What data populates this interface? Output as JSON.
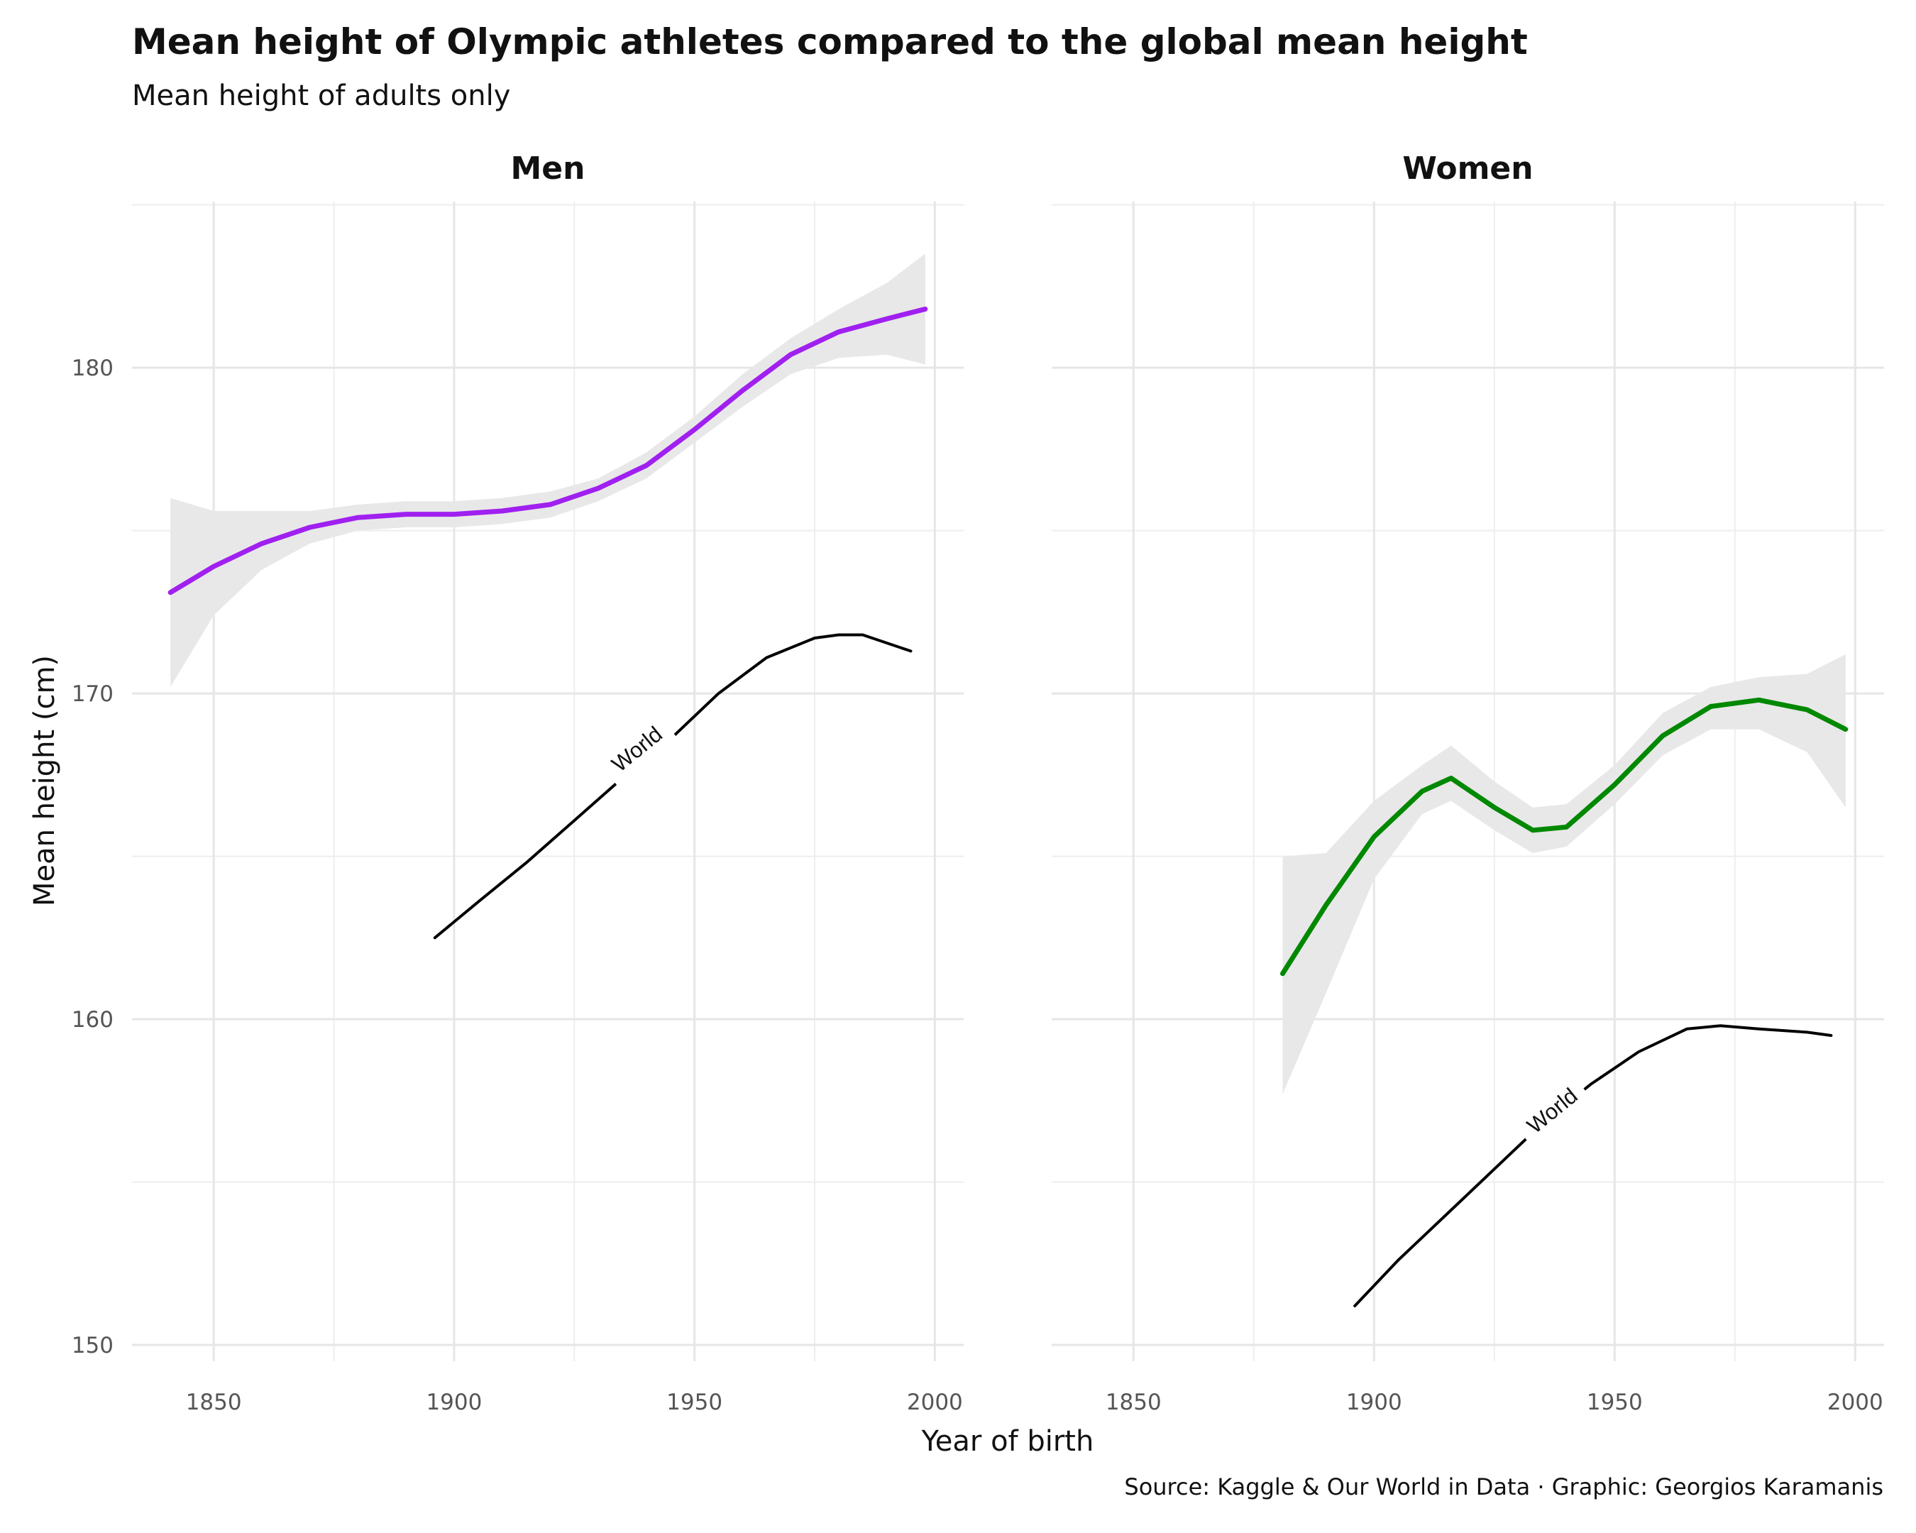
{
  "title": "Mean height of Olympic athletes compared to the global mean height",
  "subtitle": "Mean height of adults only",
  "caption": "Source: Kaggle & Our World in Data · Graphic: Georgios Karamanis",
  "chart_data": {
    "type": "line",
    "xlabel": "Year of birth",
    "ylabel": "Mean height (cm)",
    "xlim": [
      1833,
      2006
    ],
    "ylim": [
      149.5,
      185.1
    ],
    "xticks": [
      1850,
      1900,
      1950,
      2000
    ],
    "yticks": [
      150,
      160,
      170,
      180
    ],
    "grid": true,
    "colors": {
      "men": "#a020f0",
      "women": "#008800",
      "world": "#000000",
      "band": "#e8e8e8"
    },
    "facets": [
      {
        "name": "Men",
        "athletes": {
          "x": [
            1841,
            1850,
            1860,
            1870,
            1880,
            1890,
            1900,
            1910,
            1920,
            1930,
            1940,
            1950,
            1960,
            1970,
            1980,
            1990,
            1998
          ],
          "y": [
            173.1,
            173.9,
            174.6,
            175.1,
            175.4,
            175.5,
            175.5,
            175.6,
            175.8,
            176.3,
            177.0,
            178.1,
            179.3,
            180.4,
            181.1,
            181.5,
            181.8
          ],
          "lower": [
            170.2,
            172.4,
            173.8,
            174.6,
            175.0,
            175.1,
            175.1,
            175.2,
            175.4,
            175.9,
            176.6,
            177.7,
            178.8,
            179.8,
            180.3,
            180.4,
            180.1
          ],
          "upper": [
            176.0,
            175.6,
            175.6,
            175.6,
            175.8,
            175.9,
            175.9,
            176.0,
            176.2,
            176.6,
            177.4,
            178.5,
            179.8,
            180.9,
            181.8,
            182.6,
            183.5
          ]
        },
        "world": {
          "x": [
            1896,
            1905,
            1915,
            1925,
            1935,
            1945,
            1955,
            1965,
            1975,
            1980,
            1985,
            1995
          ],
          "y": [
            162.5,
            163.6,
            164.8,
            166.1,
            167.4,
            168.6,
            170.0,
            171.1,
            171.7,
            171.8,
            171.8,
            171.3
          ],
          "label": "World",
          "label_x": 1938,
          "label_y": 168.3
        }
      },
      {
        "name": "Women",
        "athletes": {
          "x": [
            1881,
            1890,
            1900,
            1910,
            1916,
            1925,
            1933,
            1940,
            1950,
            1960,
            1970,
            1980,
            1990,
            1998
          ],
          "y": [
            161.4,
            163.5,
            165.6,
            167.0,
            167.4,
            166.5,
            165.8,
            165.9,
            167.2,
            168.7,
            169.6,
            169.8,
            169.5,
            168.9
          ],
          "lower": [
            157.7,
            160.8,
            164.3,
            166.3,
            166.7,
            165.8,
            165.1,
            165.3,
            166.6,
            168.1,
            168.9,
            168.9,
            168.2,
            166.5
          ],
          "upper": [
            165.0,
            165.1,
            166.7,
            167.8,
            168.4,
            167.3,
            166.5,
            166.6,
            167.8,
            169.4,
            170.2,
            170.5,
            170.6,
            171.2
          ]
        },
        "world": {
          "x": [
            1896,
            1905,
            1915,
            1925,
            1935,
            1945,
            1955,
            1965,
            1972,
            1980,
            1990,
            1995
          ],
          "y": [
            151.2,
            152.6,
            154.0,
            155.4,
            156.8,
            158.0,
            159.0,
            159.7,
            159.8,
            159.7,
            159.6,
            159.5
          ],
          "label": "World",
          "label_x": 1937,
          "label_y": 157.2
        }
      }
    ]
  }
}
